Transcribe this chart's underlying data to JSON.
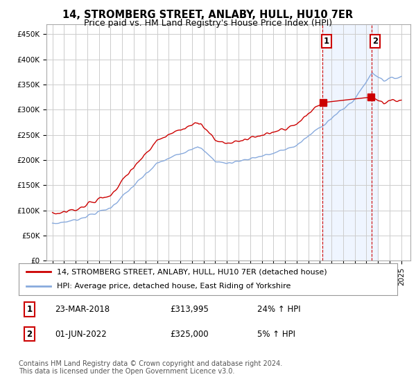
{
  "title": "14, STROMBERG STREET, ANLABY, HULL, HU10 7ER",
  "subtitle": "Price paid vs. HM Land Registry's House Price Index (HPI)",
  "ylim": [
    0,
    470000
  ],
  "yticks": [
    0,
    50000,
    100000,
    150000,
    200000,
    250000,
    300000,
    350000,
    400000,
    450000
  ],
  "ytick_labels": [
    "£0",
    "£50K",
    "£100K",
    "£150K",
    "£200K",
    "£250K",
    "£300K",
    "£350K",
    "£400K",
    "£450K"
  ],
  "legend_entry1": "14, STROMBERG STREET, ANLABY, HULL, HU10 7ER (detached house)",
  "legend_entry2": "HPI: Average price, detached house, East Riding of Yorkshire",
  "table_row1": [
    "1",
    "23-MAR-2018",
    "£313,995",
    "24% ↑ HPI"
  ],
  "table_row2": [
    "2",
    "01-JUN-2022",
    "£325,000",
    "5% ↑ HPI"
  ],
  "footer": "Contains HM Land Registry data © Crown copyright and database right 2024.\nThis data is licensed under the Open Government Licence v3.0.",
  "sale1_year": 2018.22,
  "sale1_price": 313995,
  "sale2_year": 2022.42,
  "sale2_price": 325000,
  "bg_color": "#ffffff",
  "plot_bg_color": "#ffffff",
  "grid_color": "#cccccc",
  "red_color": "#cc0000",
  "blue_color": "#88aadd",
  "highlight_bg": "#ddeeff",
  "title_fontsize": 10.5,
  "subtitle_fontsize": 9,
  "tick_fontsize": 7.5,
  "legend_fontsize": 8,
  "table_fontsize": 8.5,
  "footer_fontsize": 7
}
